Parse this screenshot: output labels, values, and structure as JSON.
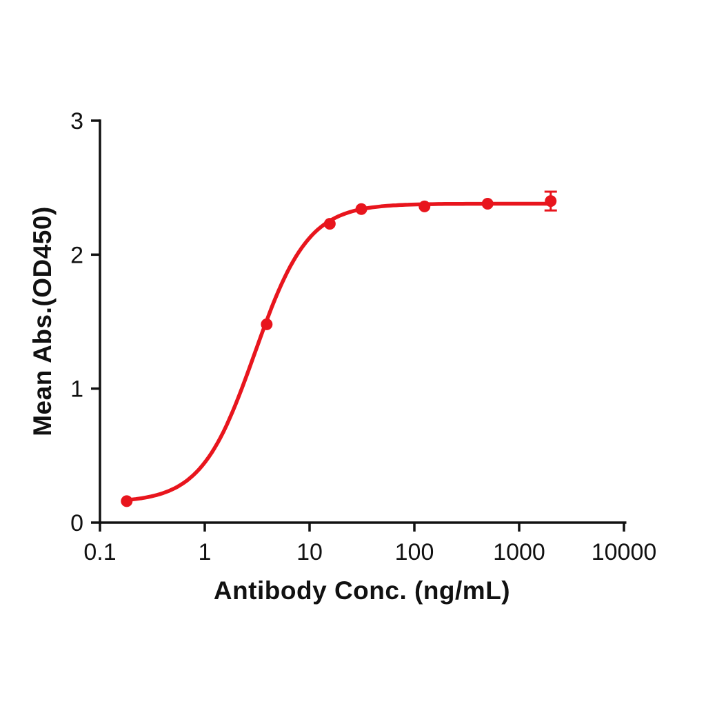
{
  "chart_data": {
    "type": "line",
    "title": "",
    "xlabel": "Antibody Conc. (ng/mL)",
    "ylabel": "Mean Abs.(OD450)",
    "x_scale": "log",
    "y_scale": "linear",
    "xlim": [
      0.1,
      10000
    ],
    "ylim": [
      0,
      3
    ],
    "x_ticks": [
      0.1,
      1,
      10,
      100,
      1000,
      10000
    ],
    "x_tick_labels": [
      "0.1",
      "1",
      "10",
      "100",
      "1000",
      "10000"
    ],
    "y_ticks": [
      0,
      1,
      2,
      3
    ],
    "y_tick_labels": [
      "0",
      "1",
      "2",
      "3"
    ],
    "grid": false,
    "legend": false,
    "axis_color": "#111111",
    "series": [
      {
        "color": "#e8151d",
        "marker": "circle",
        "x": [
          0.18,
          3.9,
          15.6,
          31.2,
          125,
          500,
          2000
        ],
        "y": [
          0.16,
          1.48,
          2.23,
          2.34,
          2.36,
          2.38,
          2.4
        ],
        "y_err": [
          0,
          0,
          0,
          0,
          0,
          0,
          0.07
        ],
        "fit": {
          "model": "4PL",
          "bottom": 0.15,
          "top": 2.38,
          "ec50": 3.0,
          "hill": 1.7
        }
      }
    ]
  }
}
